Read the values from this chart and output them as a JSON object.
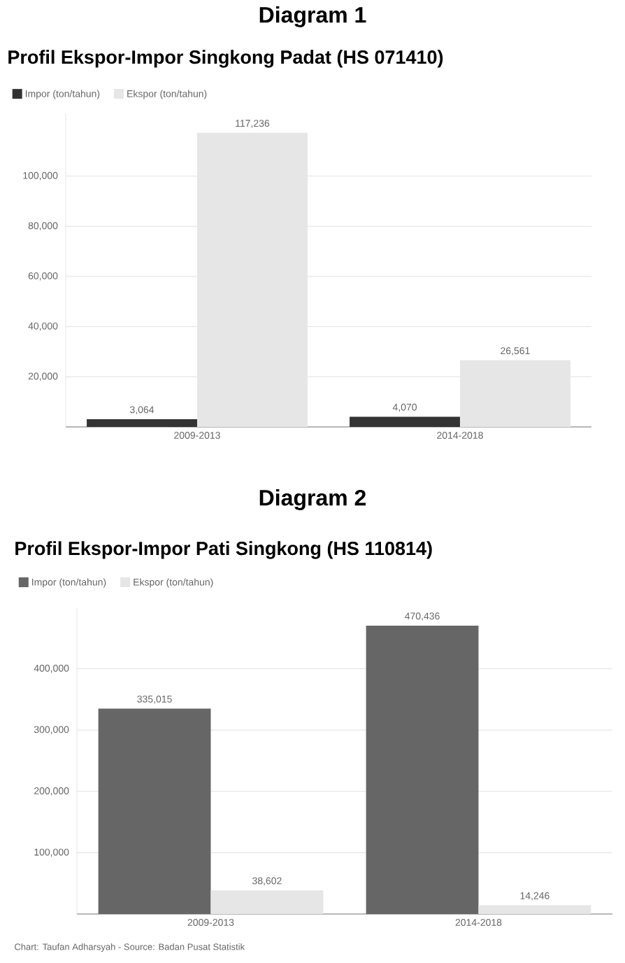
{
  "chart_data": [
    {
      "type": "bar",
      "title": "Diagram 1",
      "subtitle": "Profil Ekspor-Impor Singkong Padat (HS 071410)",
      "categories": [
        "2009-2013",
        "2014-2018"
      ],
      "series": [
        {
          "name": "Impor (ton/tahun)",
          "color": "#333333",
          "values": [
            3064,
            4070
          ],
          "value_labels": [
            "3,064",
            "4,070"
          ]
        },
        {
          "name": "Ekspor (ton/tahun)",
          "color": "#e6e6e6",
          "values": [
            117236,
            26561
          ],
          "value_labels": [
            "117,236",
            "26,561"
          ]
        }
      ],
      "ylim": [
        0,
        125000
      ],
      "yticks": [
        {
          "value": 20000,
          "label": "20,000"
        },
        {
          "value": 40000,
          "label": "40,000"
        },
        {
          "value": 60000,
          "label": "60,000"
        },
        {
          "value": 80000,
          "label": "80,000"
        },
        {
          "value": 100000,
          "label": "100,000"
        }
      ],
      "grid": "y",
      "legend": "top left"
    },
    {
      "type": "bar",
      "title": "Diagram 2",
      "subtitle": "Profil Ekspor-Impor Pati Singkong (HS 110814)",
      "categories": [
        "2009-2013",
        "2014-2018"
      ],
      "series": [
        {
          "name": "Impor (ton/tahun)",
          "color": "#666666",
          "values": [
            335015,
            470436
          ],
          "value_labels": [
            "335,015",
            "470,436"
          ]
        },
        {
          "name": "Ekspor (ton/tahun)",
          "color": "#e6e6e6",
          "values": [
            38602,
            14246
          ],
          "value_labels": [
            "38,602",
            "14,246"
          ]
        }
      ],
      "ylim": [
        0,
        500000
      ],
      "yticks": [
        {
          "value": 100000,
          "label": "100,000"
        },
        {
          "value": 200000,
          "label": "200,000"
        },
        {
          "value": 300000,
          "label": "300,000"
        },
        {
          "value": 400000,
          "label": "400,000"
        }
      ],
      "grid": "y",
      "legend": "top left",
      "annotations": [
        "Chart: Taufan Adharsyah - Source: Badan Pusat Statistik"
      ]
    }
  ]
}
